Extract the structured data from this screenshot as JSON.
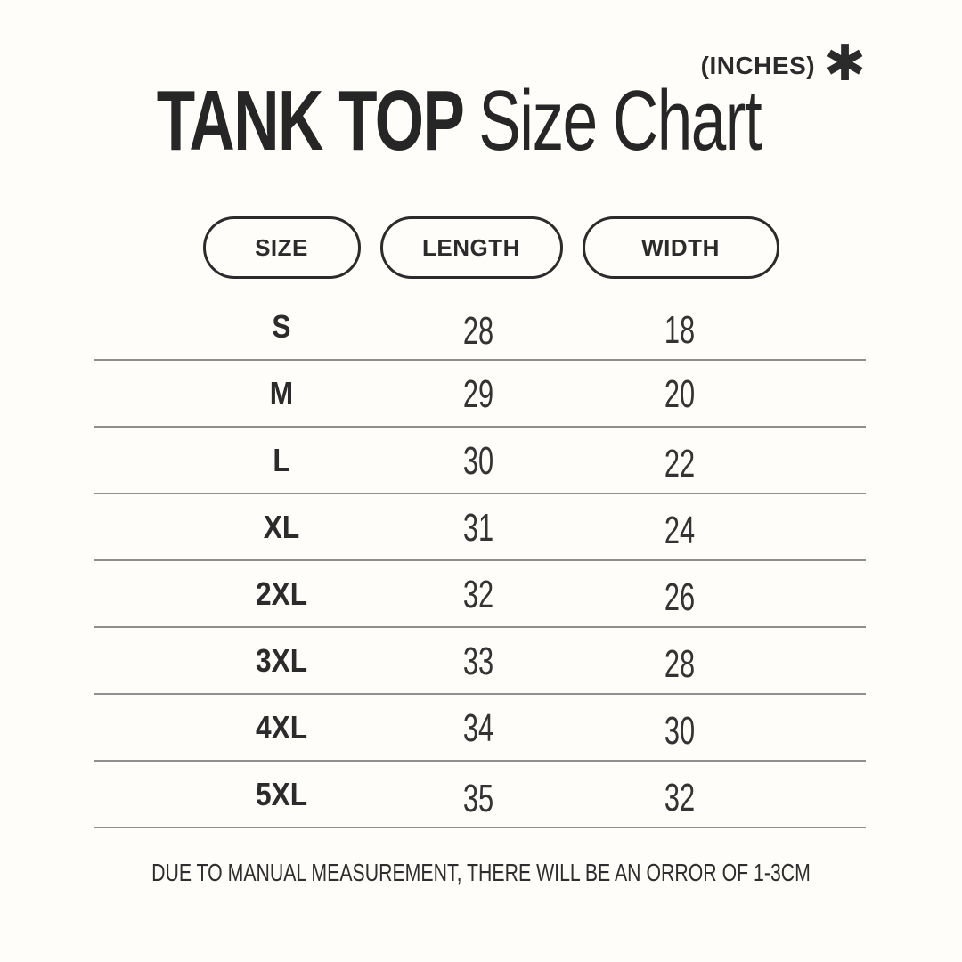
{
  "header": {
    "unit_label": "(INCHES)",
    "asterisk": "✱",
    "title_bold": "TANK TOP",
    "title_regular": "Size Chart"
  },
  "table": {
    "headers": {
      "size": "SIZE",
      "length": "LENGTH",
      "width": "WIDTH"
    },
    "rows": [
      {
        "size": "S",
        "length": "28",
        "width": "18"
      },
      {
        "size": "M",
        "length": "29",
        "width": "20"
      },
      {
        "size": "L",
        "length": "30",
        "width": "22"
      },
      {
        "size": "XL",
        "length": "31",
        "width": "24"
      },
      {
        "size": "2XL",
        "length": "32",
        "width": "26"
      },
      {
        "size": "3XL",
        "length": "33",
        "width": "28"
      },
      {
        "size": "4XL",
        "length": "34",
        "width": "30"
      },
      {
        "size": "5XL",
        "length": "35",
        "width": "32"
      }
    ]
  },
  "footer": {
    "note": "DUE TO MANUAL MEASUREMENT, THERE WILL BE AN ORROR OF 1-3CM"
  },
  "chart_data": {
    "type": "table",
    "title": "TANK TOP Size Chart",
    "unit": "INCHES",
    "columns": [
      "SIZE",
      "LENGTH",
      "WIDTH"
    ],
    "rows": [
      [
        "S",
        28,
        18
      ],
      [
        "M",
        29,
        20
      ],
      [
        "L",
        30,
        22
      ],
      [
        "XL",
        31,
        24
      ],
      [
        "2XL",
        32,
        26
      ],
      [
        "3XL",
        33,
        28
      ],
      [
        "4XL",
        34,
        30
      ],
      [
        "5XL",
        35,
        32
      ]
    ],
    "footnote": "DUE TO MANUAL MEASUREMENT, THERE WILL BE AN ORROR OF 1-3CM"
  },
  "colors": {
    "background": "#fffdf9",
    "text": "#2b2b2b",
    "divider": "#8f8f8f",
    "pill_border": "#2b2b2b"
  }
}
